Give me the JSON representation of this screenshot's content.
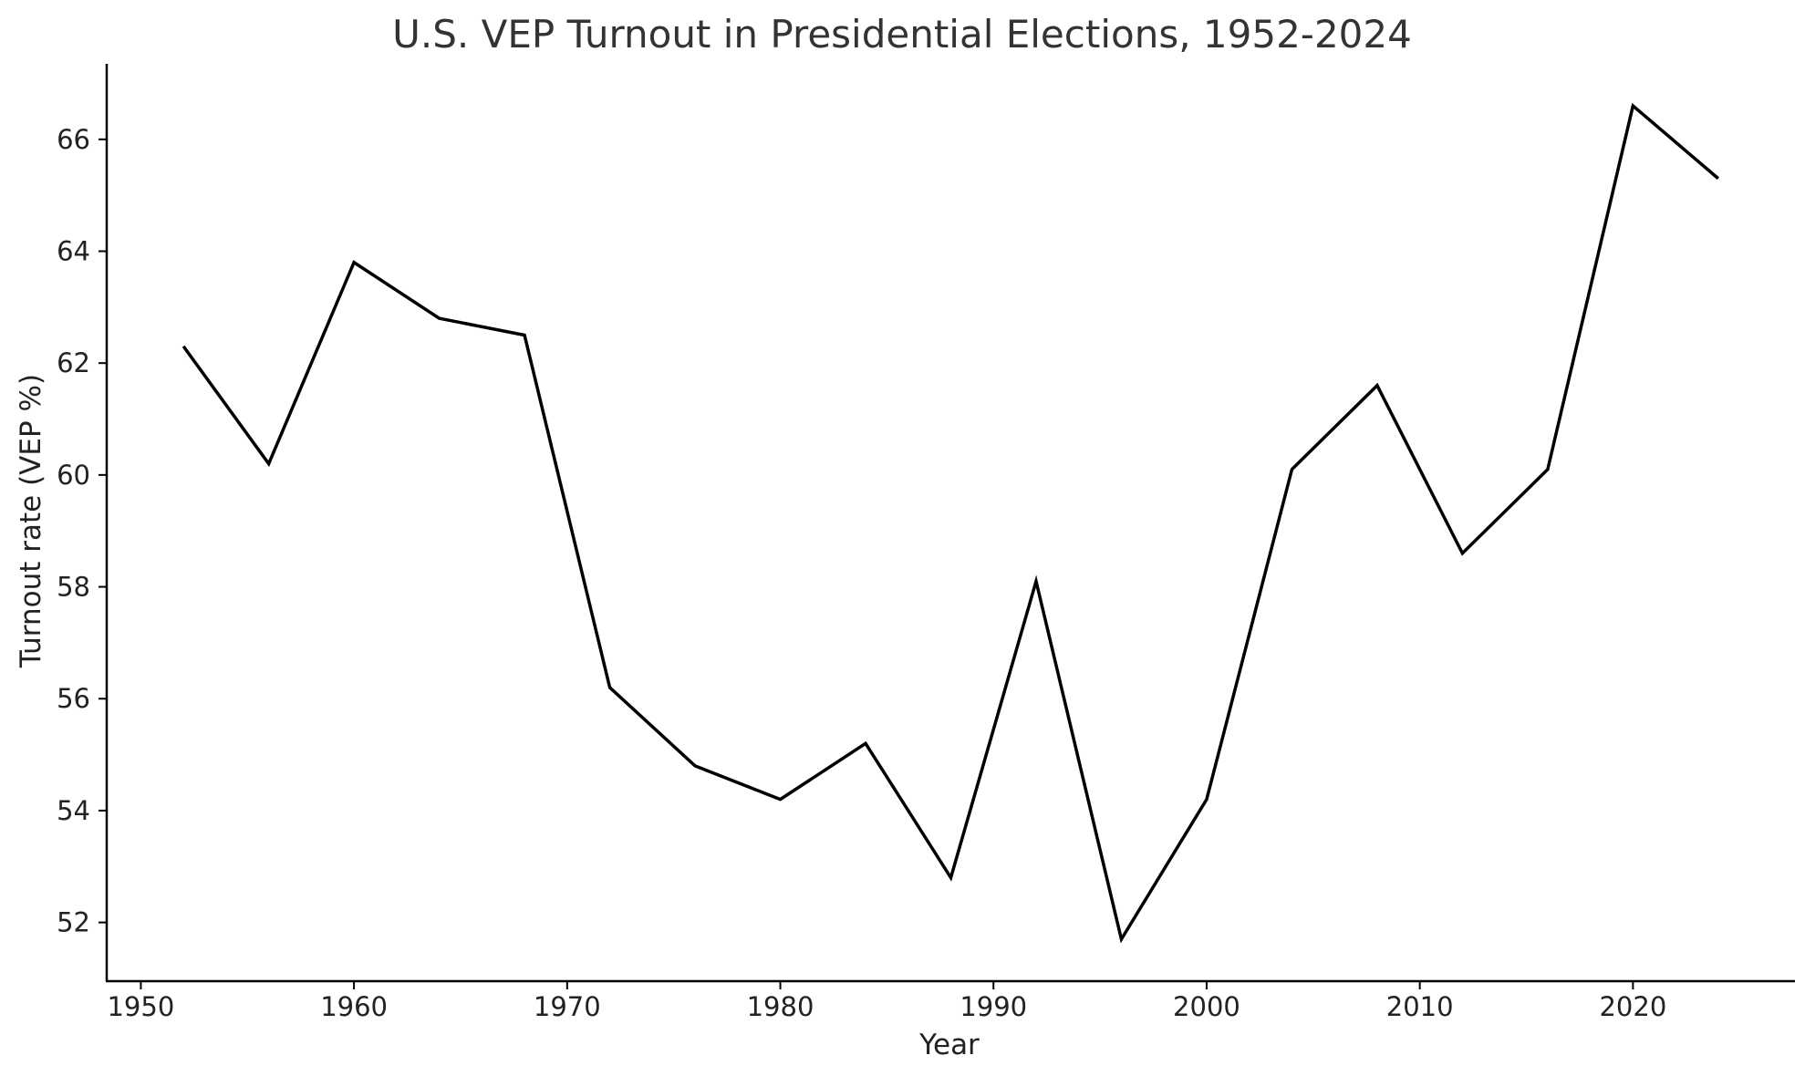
{
  "chart_data": {
    "type": "line",
    "title": "U.S. VEP Turnout in Presidential Elections, 1952-2024",
    "xlabel": "Year",
    "ylabel": "Turnout rate (VEP %)",
    "x": [
      1952,
      1956,
      1960,
      1964,
      1968,
      1972,
      1976,
      1980,
      1984,
      1988,
      1992,
      1996,
      2000,
      2004,
      2008,
      2012,
      2016,
      2020,
      2024
    ],
    "series": [
      {
        "values": [
          62.3,
          60.2,
          63.8,
          62.8,
          62.5,
          56.2,
          54.8,
          54.2,
          55.2,
          52.8,
          58.1,
          51.7,
          54.2,
          60.1,
          61.6,
          58.6,
          60.1,
          66.6,
          65.3
        ],
        "color": "#000000"
      }
    ],
    "xlim": [
      1948.4,
      2027.6
    ],
    "ylim": [
      50.95,
      67.35
    ],
    "xticks": [
      1950,
      1960,
      1970,
      1980,
      1990,
      2000,
      2010,
      2020
    ],
    "yticks": [
      52,
      54,
      56,
      58,
      60,
      62,
      64,
      66
    ],
    "grid": false,
    "legend": "none"
  }
}
